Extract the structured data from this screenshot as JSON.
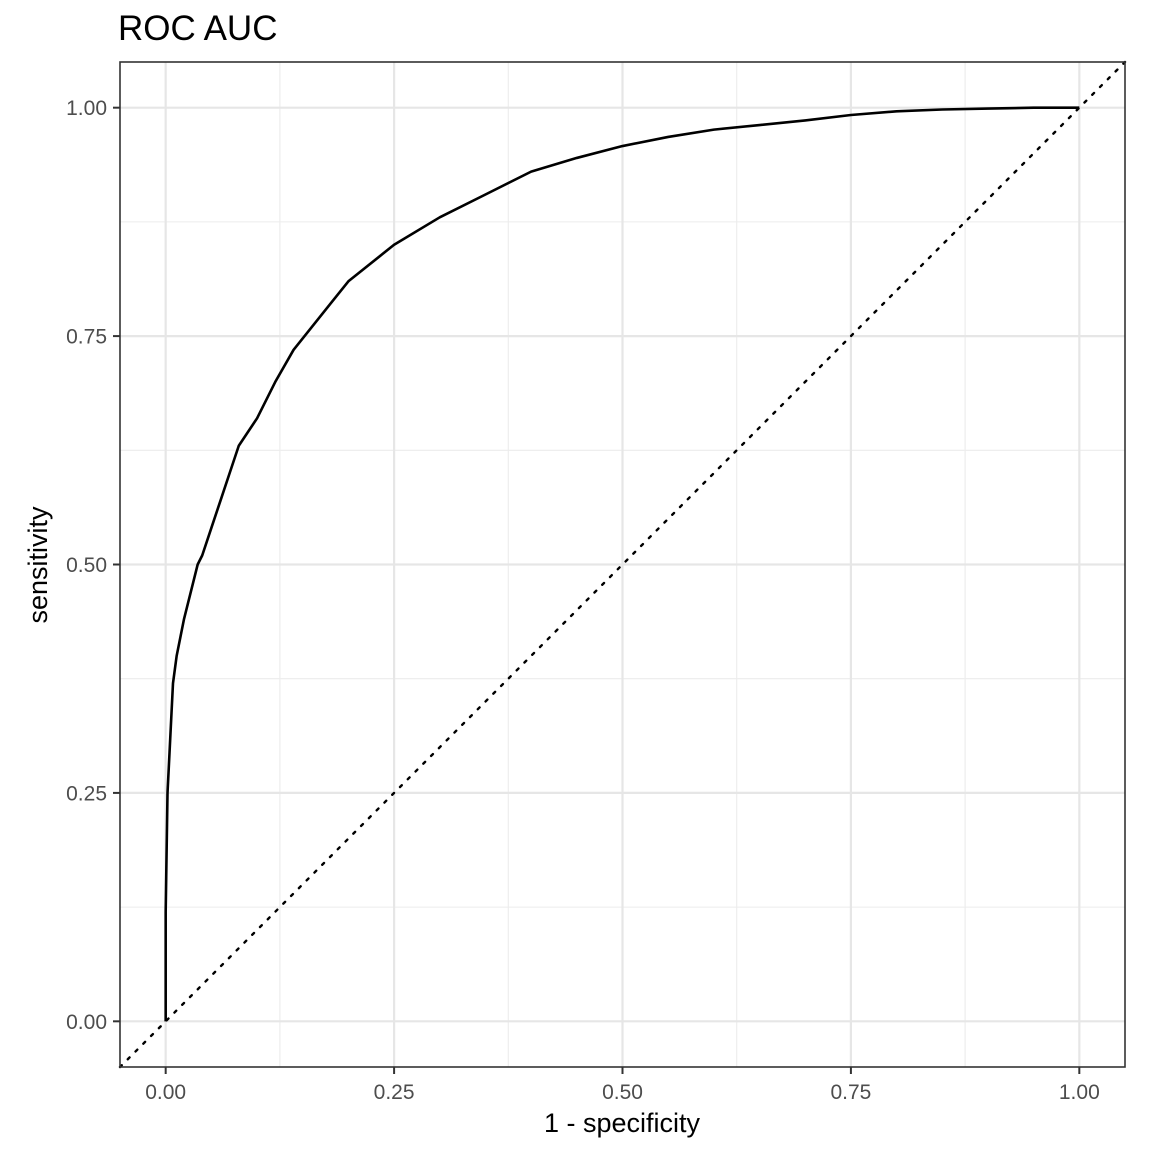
{
  "chart_data": {
    "type": "line",
    "title": "ROC AUC",
    "xlabel": "1 - specificity",
    "ylabel": "sensitivity",
    "xlim": [
      -0.05,
      1.05
    ],
    "ylim": [
      -0.05,
      1.05
    ],
    "x_ticks": [
      0.0,
      0.25,
      0.5,
      0.75,
      1.0
    ],
    "x_tick_labels": [
      "0.00",
      "0.25",
      "0.50",
      "0.75",
      "1.00"
    ],
    "y_ticks": [
      0.0,
      0.25,
      0.5,
      0.75,
      1.0
    ],
    "y_tick_labels": [
      "0.00",
      "0.25",
      "0.50",
      "0.75",
      "1.00"
    ],
    "x_minor_ticks": [
      0.125,
      0.375,
      0.625,
      0.875
    ],
    "y_minor_ticks": [
      0.125,
      0.375,
      0.625,
      0.875
    ],
    "grid": true,
    "legend": "none",
    "series": [
      {
        "style": "solid",
        "color": "#000000",
        "x": [
          0.0,
          0.0,
          0.002,
          0.005,
          0.008,
          0.012,
          0.016,
          0.02,
          0.025,
          0.03,
          0.035,
          0.04,
          0.05,
          0.06,
          0.07,
          0.08,
          0.1,
          0.12,
          0.14,
          0.16,
          0.18,
          0.2,
          0.25,
          0.3,
          0.35,
          0.4,
          0.45,
          0.5,
          0.55,
          0.6,
          0.65,
          0.7,
          0.75,
          0.8,
          0.85,
          0.9,
          0.95,
          1.0
        ],
        "y": [
          0.0,
          0.12,
          0.25,
          0.31,
          0.37,
          0.4,
          0.42,
          0.44,
          0.46,
          0.48,
          0.5,
          0.51,
          0.54,
          0.57,
          0.6,
          0.63,
          0.66,
          0.7,
          0.735,
          0.76,
          0.785,
          0.81,
          0.85,
          0.88,
          0.905,
          0.93,
          0.945,
          0.958,
          0.968,
          0.976,
          0.981,
          0.986,
          0.992,
          0.996,
          0.998,
          0.999,
          1.0,
          1.0
        ]
      },
      {
        "style": "dotted",
        "color": "#000000",
        "x": [
          -0.05,
          1.05
        ],
        "y": [
          -0.05,
          1.05
        ]
      }
    ]
  }
}
